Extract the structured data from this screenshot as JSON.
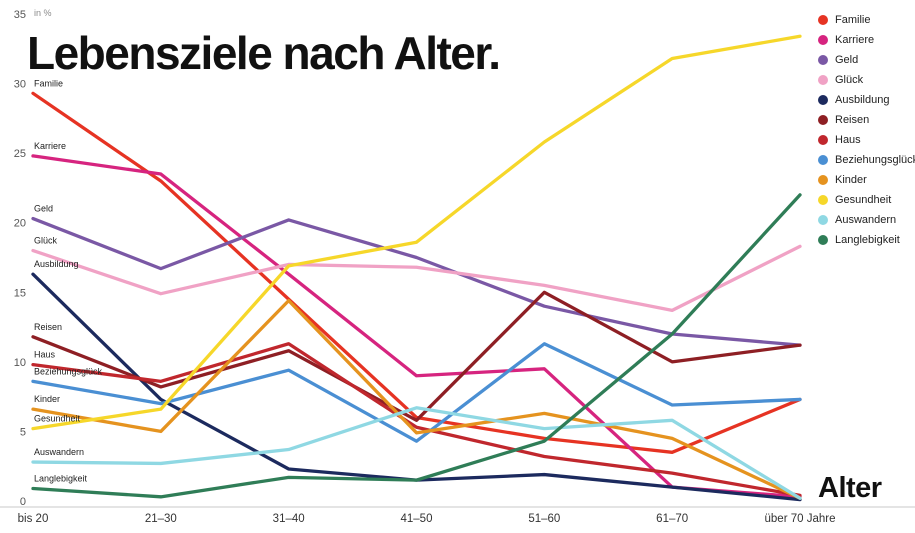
{
  "title": "Lebensziele nach Alter.",
  "axis": {
    "unit_label": "in %",
    "x_axis_label": "Alter"
  },
  "chart_data": {
    "type": "line",
    "title": "Lebensziele nach Alter.",
    "xlabel": "Alter",
    "ylabel": "in %",
    "ylim": [
      0,
      35
    ],
    "ytick_step": 5,
    "grid": false,
    "legend_position": "top-right",
    "categories": [
      "bis 20",
      "21–30",
      "31–40",
      "41–50",
      "51–60",
      "61–70",
      "über 70 Jahre"
    ],
    "series": [
      {
        "name": "Familie",
        "color": "#e63323",
        "values": [
          29.3,
          23.0,
          14.5,
          6.0,
          4.5,
          3.5,
          7.3
        ]
      },
      {
        "name": "Karriere",
        "color": "#d6247f",
        "values": [
          24.8,
          23.5,
          16.3,
          9.0,
          9.5,
          1.0,
          0.3
        ]
      },
      {
        "name": "Geld",
        "color": "#7a58a5",
        "values": [
          20.3,
          16.7,
          20.2,
          17.5,
          14.0,
          12.0,
          11.2
        ]
      },
      {
        "name": "Glück",
        "color": "#f0a2c5",
        "values": [
          18.0,
          14.9,
          17.0,
          16.8,
          15.5,
          13.7,
          18.3
        ]
      },
      {
        "name": "Ausbildung",
        "color": "#1c2a5e",
        "values": [
          16.3,
          7.3,
          2.3,
          1.5,
          1.9,
          1.0,
          0.1
        ]
      },
      {
        "name": "Reisen",
        "color": "#8e1f24",
        "values": [
          11.8,
          8.2,
          10.8,
          5.8,
          15.0,
          10.0,
          11.2
        ]
      },
      {
        "name": "Haus",
        "color": "#c0272d",
        "values": [
          9.8,
          8.6,
          11.3,
          5.3,
          3.2,
          2.0,
          0.4
        ]
      },
      {
        "name": "Beziehungsglück",
        "color": "#4a8fd3",
        "values": [
          8.6,
          7.0,
          9.4,
          4.3,
          11.3,
          6.9,
          7.3
        ]
      },
      {
        "name": "Kinder",
        "color": "#e5931f",
        "values": [
          6.6,
          5.0,
          14.4,
          4.9,
          6.3,
          4.5,
          0.2
        ]
      },
      {
        "name": "Gesundheit",
        "color": "#f6d72a",
        "values": [
          5.2,
          6.6,
          16.9,
          18.6,
          25.8,
          31.8,
          33.4
        ]
      },
      {
        "name": "Auswandern",
        "color": "#8fd8e3",
        "values": [
          2.8,
          2.7,
          3.7,
          6.7,
          5.2,
          5.8,
          0.2
        ]
      },
      {
        "name": "Langlebigkeit",
        "color": "#2f7d57",
        "values": [
          0.9,
          0.3,
          1.7,
          1.5,
          4.3,
          12.0,
          22.0
        ]
      }
    ]
  }
}
